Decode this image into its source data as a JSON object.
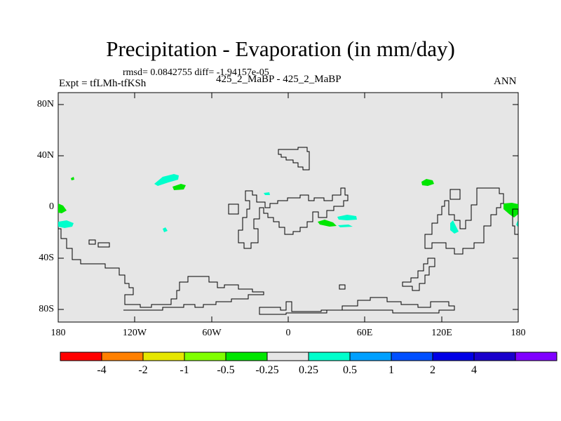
{
  "header": {
    "title": "Precipitation - Evaporation (in mm/day)",
    "stats": "rmsd= 0.0842755 diff= -1.94157e-05",
    "experiment": "Expt = tfLMh-tfKSh",
    "case": "425_2_MaBP - 425_2_MaBP",
    "season": "ANN"
  },
  "map": {
    "lat_labels": [
      "80N",
      "40N",
      "0",
      "40S",
      "80S"
    ],
    "lon_labels": [
      "180",
      "120W",
      "60W",
      "0",
      "60E",
      "120E",
      "180"
    ],
    "background_color": "#e6e6e6"
  },
  "colorbar": {
    "colors": [
      "#ff0000",
      "#ff8000",
      "#e6e600",
      "#80ff00",
      "#00e600",
      "#e6e6e6",
      "#00ffcc",
      "#00a0ff",
      "#0050ff",
      "#0000e6",
      "#1a00cc",
      "#8000ff"
    ],
    "labels": [
      "-4",
      "-2",
      "-1",
      "-0.5",
      "-0.25",
      "0.25",
      "0.5",
      "1",
      "2",
      "4"
    ]
  }
}
